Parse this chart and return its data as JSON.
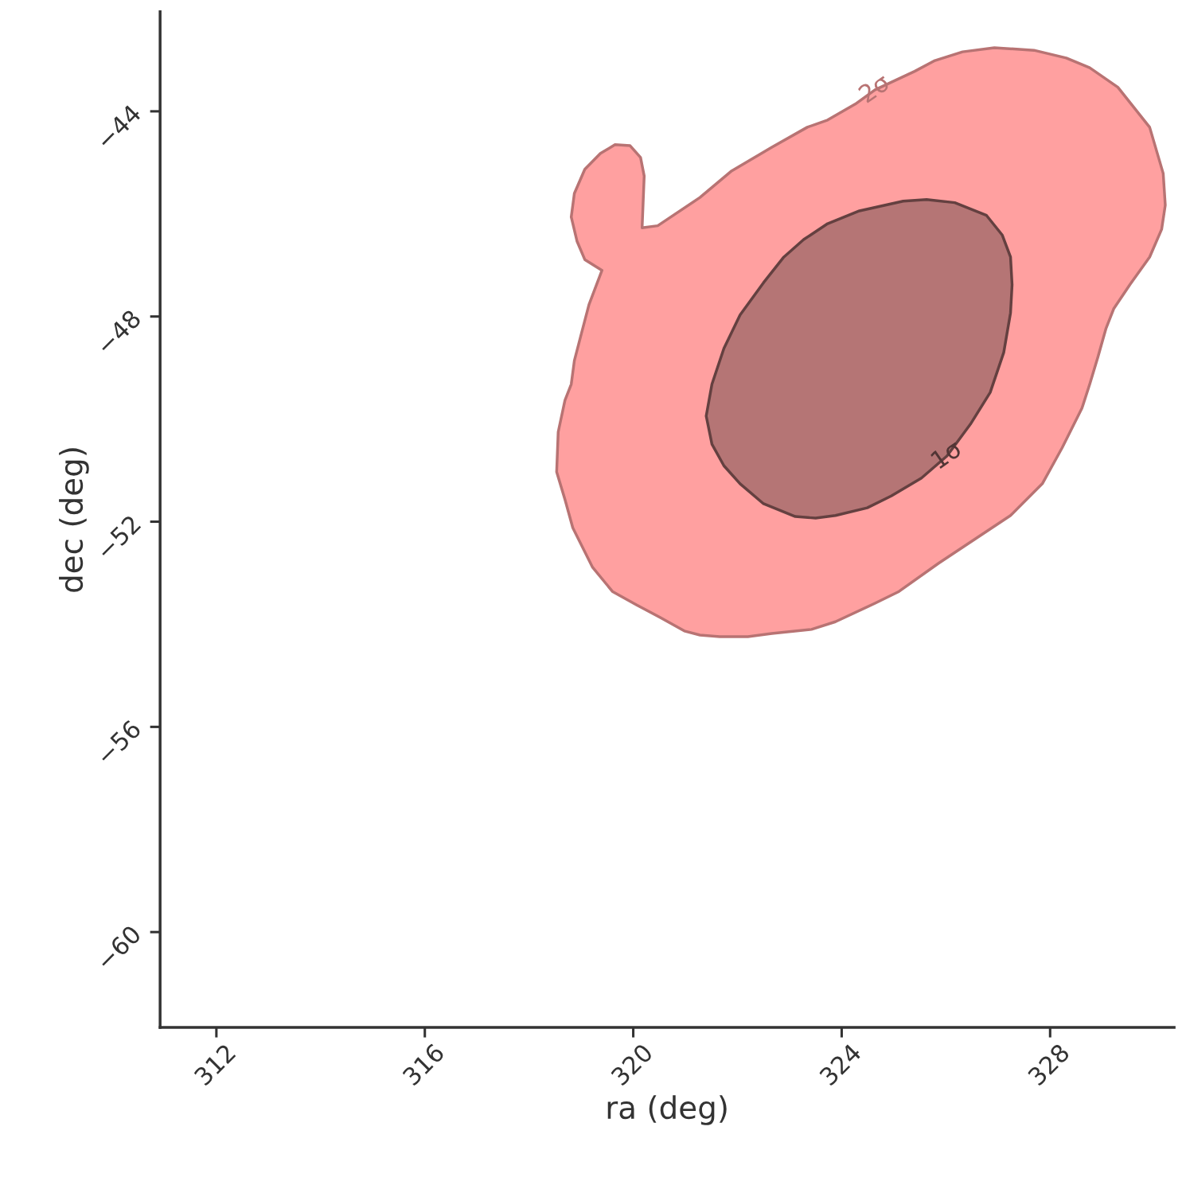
{
  "chart_data": {
    "type": "area",
    "xlabel": "ra (deg)",
    "ylabel": "dec (deg)",
    "xlim": [
      310.92,
      330.38
    ],
    "ylim": [
      -61.86,
      -42.06
    ],
    "xticks": [
      312,
      316,
      320,
      324,
      328
    ],
    "yticks": [
      {
        "value": -60,
        "label": "−60"
      },
      {
        "value": -56,
        "label": "−56"
      },
      {
        "value": -52,
        "label": "−52"
      },
      {
        "value": -48,
        "label": "−48"
      },
      {
        "value": -44,
        "label": "−44"
      }
    ],
    "grid": false,
    "series": [
      {
        "color": "#ffa0a0",
        "x": [
          318.81,
          318.87,
          319.07,
          319.37,
          319.65,
          319.94,
          320.14,
          320.21,
          320.17,
          320.47,
          321.28,
          321.89,
          322.66,
          323.34,
          323.73,
          324.26,
          324.64,
          325.4,
          325.79,
          326.32,
          326.93,
          327.69,
          328.31,
          328.76,
          329.3,
          329.91,
          330.17,
          330.21,
          330.14,
          329.91,
          329.53,
          329.22,
          329.07,
          328.92,
          328.76,
          328.61,
          328.23,
          327.85,
          327.24,
          326.78,
          325.86,
          325.1,
          324.64,
          323.88,
          323.42,
          322.66,
          322.2,
          321.66,
          321.28,
          320.98,
          320.52,
          320.06,
          319.6,
          319.22,
          318.84,
          318.69,
          318.53,
          318.56,
          318.69,
          318.81,
          318.87,
          318.99,
          319.15,
          319.4,
          319.07,
          318.92
        ],
        "values": [
          -46.06,
          -45.6,
          -45.13,
          -44.82,
          -44.65,
          -44.67,
          -44.9,
          -45.26,
          -46.27,
          -46.23,
          -45.68,
          -45.16,
          -44.7,
          -44.31,
          -44.17,
          -43.86,
          -43.58,
          -43.22,
          -43.01,
          -42.84,
          -42.76,
          -42.81,
          -42.96,
          -43.15,
          -43.53,
          -44.31,
          -45.21,
          -45.83,
          -46.3,
          -46.84,
          -47.38,
          -47.85,
          -48.24,
          -48.78,
          -49.32,
          -49.79,
          -50.56,
          -51.26,
          -51.88,
          -52.19,
          -52.81,
          -53.36,
          -53.59,
          -53.95,
          -54.1,
          -54.18,
          -54.24,
          -54.24,
          -54.21,
          -54.13,
          -53.87,
          -53.62,
          -53.36,
          -52.89,
          -52.12,
          -51.57,
          -51.03,
          -50.25,
          -49.63,
          -49.32,
          -48.86,
          -48.39,
          -47.77,
          -47.1,
          -46.89,
          -46.53
        ]
      },
      {
        "color": "#b57575",
        "x": [
          321.4,
          321.51,
          321.74,
          322.05,
          322.5,
          322.89,
          323.27,
          323.73,
          324.34,
          325.18,
          325.63,
          326.17,
          326.78,
          327.08,
          327.24,
          327.27,
          327.24,
          327.11,
          326.85,
          326.47,
          326.02,
          325.53,
          324.95,
          324.49,
          323.88,
          323.5,
          323.11,
          322.5,
          322.05,
          321.74,
          321.51
        ],
        "values": [
          -49.94,
          -49.32,
          -48.62,
          -47.97,
          -47.34,
          -46.84,
          -46.5,
          -46.19,
          -45.94,
          -45.75,
          -45.72,
          -45.78,
          -46.03,
          -46.41,
          -46.84,
          -47.38,
          -47.93,
          -48.7,
          -49.48,
          -50.1,
          -50.72,
          -51.15,
          -51.5,
          -51.73,
          -51.88,
          -51.93,
          -51.9,
          -51.65,
          -51.26,
          -50.91,
          -50.49
        ]
      }
    ],
    "annotations": [
      {
        "text": "2σ",
        "x": 324.64,
        "y": -43.58
      },
      {
        "text": "1σ",
        "x": 326.02,
        "y": -50.72
      }
    ]
  }
}
